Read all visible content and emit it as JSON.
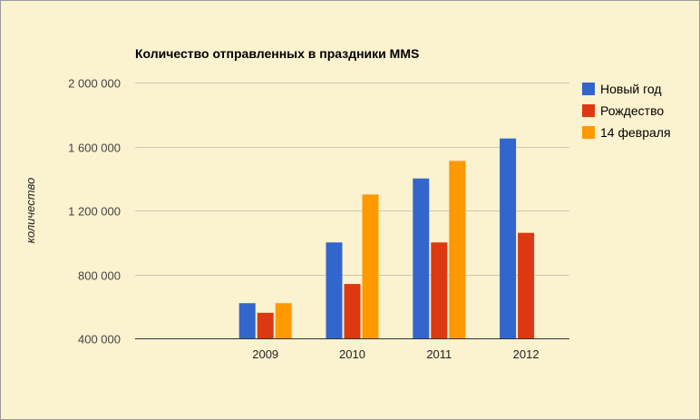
{
  "chart_data": {
    "type": "bar",
    "title": "Количество отправленных в праздники MMS",
    "xlabel": "",
    "ylabel": "количество",
    "ylim": [
      400000,
      2000000
    ],
    "yticks": [
      400000,
      800000,
      1200000,
      1600000,
      2000000
    ],
    "ytick_labels": [
      "400 000",
      "800 000",
      "1 200 000",
      "1 600 000",
      "2 000 000"
    ],
    "categories": [
      "",
      "2009",
      "2010",
      "2011",
      "2012"
    ],
    "series": [
      {
        "name": "Новый год",
        "color": "#3366cc",
        "values": [
          null,
          620000,
          1000000,
          1400000,
          1650000
        ]
      },
      {
        "name": "Рождество",
        "color": "#dc3912",
        "values": [
          null,
          560000,
          740000,
          1000000,
          1060000
        ]
      },
      {
        "name": "14 февраля",
        "color": "#ff9900",
        "values": [
          null,
          620000,
          1300000,
          1510000,
          null
        ]
      }
    ],
    "grid": true,
    "legend": "right"
  }
}
